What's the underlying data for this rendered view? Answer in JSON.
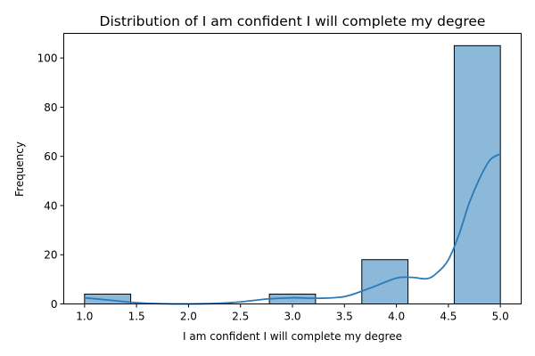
{
  "chart_data": {
    "type": "bar",
    "title": "Distribution of I am confident I will complete my degree",
    "xlabel": "I am confident I will complete my degree",
    "ylabel": "Frequency",
    "xlim": [
      0.8,
      5.2
    ],
    "ylim": [
      0,
      110
    ],
    "xticks": [
      1.0,
      1.5,
      2.0,
      2.5,
      3.0,
      3.5,
      4.0,
      4.5,
      5.0
    ],
    "xtick_labels": [
      "1.0",
      "1.5",
      "2.0",
      "2.5",
      "3.0",
      "3.5",
      "4.0",
      "4.5",
      "5.0"
    ],
    "yticks": [
      0,
      20,
      40,
      60,
      80,
      100
    ],
    "ytick_labels": [
      "0",
      "20",
      "40",
      "60",
      "80",
      "100"
    ],
    "bins": [
      {
        "x0": 1.0,
        "x1": 1.444,
        "count": 4
      },
      {
        "x0": 1.444,
        "x1": 1.889,
        "count": 0
      },
      {
        "x0": 1.889,
        "x1": 2.333,
        "count": 0
      },
      {
        "x0": 2.333,
        "x1": 2.778,
        "count": 0
      },
      {
        "x0": 2.778,
        "x1": 3.222,
        "count": 4
      },
      {
        "x0": 3.222,
        "x1": 3.667,
        "count": 0
      },
      {
        "x0": 3.667,
        "x1": 4.111,
        "count": 18
      },
      {
        "x0": 4.111,
        "x1": 4.556,
        "count": 0
      },
      {
        "x0": 4.556,
        "x1": 5.0,
        "count": 105
      }
    ],
    "kde": {
      "x": [
        1.0,
        1.25,
        1.5,
        1.75,
        2.0,
        2.25,
        2.5,
        2.75,
        3.0,
        3.25,
        3.5,
        3.75,
        4.0,
        4.15,
        4.3,
        4.4,
        4.5,
        4.6,
        4.7,
        4.8,
        4.9,
        5.0
      ],
      "y": [
        2.5,
        1.5,
        0.5,
        0.1,
        0.0,
        0.2,
        0.8,
        2.0,
        2.5,
        2.3,
        3.0,
        6.5,
        10.5,
        10.8,
        10.3,
        13.0,
        18.0,
        28.0,
        41.0,
        51.0,
        58.5,
        61.0
      ]
    },
    "bar_color": "#8cb9da",
    "bar_edge_color": "#000000",
    "kde_color": "#2a7ab8",
    "grid": false,
    "legend": false
  }
}
